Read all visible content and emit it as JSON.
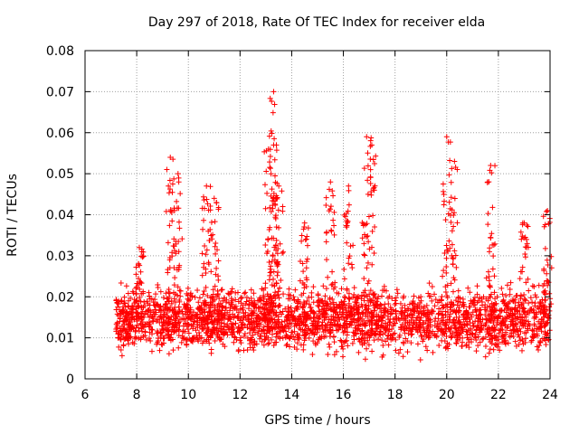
{
  "chart_data": {
    "type": "scatter",
    "title": "Day 297 of 2018, Rate Of TEC Index for receiver elda",
    "xlabel": "GPS time / hours",
    "ylabel": "ROTI / TECUs",
    "xlim": [
      6,
      24
    ],
    "ylim": [
      0,
      0.08
    ],
    "xticks": [
      6,
      8,
      10,
      12,
      14,
      16,
      18,
      20,
      22,
      24
    ],
    "yticks": [
      0,
      0.01,
      0.02,
      0.03,
      0.04,
      0.05,
      0.06,
      0.07,
      0.08
    ],
    "grid": true,
    "marker": "+",
    "color": "#ff0000",
    "base_band": {
      "x_range": [
        7.2,
        24
      ],
      "y_range": [
        0.004,
        0.022
      ],
      "density": "dense"
    },
    "notable_points": [
      {
        "x": 13.3,
        "y": 0.07
      },
      {
        "x": 9.3,
        "y": 0.054
      },
      {
        "x": 9.6,
        "y": 0.05
      },
      {
        "x": 10.7,
        "y": 0.047
      },
      {
        "x": 11.0,
        "y": 0.044
      },
      {
        "x": 13.1,
        "y": 0.056
      },
      {
        "x": 13.3,
        "y": 0.057
      },
      {
        "x": 13.5,
        "y": 0.047
      },
      {
        "x": 15.5,
        "y": 0.048
      },
      {
        "x": 16.2,
        "y": 0.047
      },
      {
        "x": 16.9,
        "y": 0.059
      },
      {
        "x": 17.1,
        "y": 0.057
      },
      {
        "x": 20.0,
        "y": 0.059
      },
      {
        "x": 20.3,
        "y": 0.053
      },
      {
        "x": 21.7,
        "y": 0.052
      },
      {
        "x": 8.1,
        "y": 0.032
      },
      {
        "x": 14.5,
        "y": 0.038
      },
      {
        "x": 23.0,
        "y": 0.038
      },
      {
        "x": 23.9,
        "y": 0.041
      }
    ]
  }
}
